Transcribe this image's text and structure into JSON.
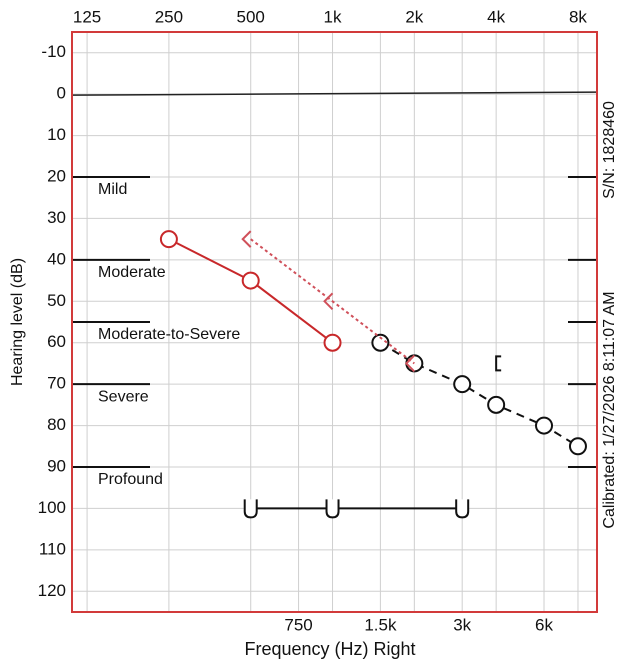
{
  "chart_data": {
    "type": "audiogram",
    "x_label": "Frequency (Hz) Right",
    "y_label": "Hearing level (dB)",
    "serial": "S/N: 1828460",
    "calibrated": "Calibrated: 1/27/2026 8:11:07 AM",
    "xlog": true,
    "xlim": [
      110,
      9400
    ],
    "ylim": [
      125,
      -15
    ],
    "top_xticks": [
      125,
      250,
      500,
      {
        "value": 1000,
        "label": "1k"
      },
      {
        "value": 2000,
        "label": "2k"
      },
      {
        "value": 4000,
        "label": "4k"
      },
      {
        "value": 8000,
        "label": "8k"
      }
    ],
    "bottom_xticks": [
      750,
      {
        "value": 1500,
        "label": "1.5k"
      },
      {
        "value": 3000,
        "label": "3k"
      },
      {
        "value": 6000,
        "label": "6k"
      }
    ],
    "yticks": [
      -10,
      0,
      10,
      20,
      30,
      40,
      50,
      60,
      70,
      80,
      90,
      100,
      110,
      120
    ],
    "grid": true,
    "frame_color": "#d23a3a",
    "reference_line": 0,
    "degrees": [
      {
        "label": "Mild",
        "from": 20
      },
      {
        "label": "Moderate",
        "from": 40
      },
      {
        "label": "Moderate-to-Severe",
        "from": 55
      },
      {
        "label": "Severe",
        "from": 70
      },
      {
        "label": "Profound",
        "from": 90
      }
    ],
    "series": [
      {
        "marker": "circle",
        "color": "#c8282a",
        "dash": "none",
        "x": [
          250,
          500,
          1000
        ],
        "values": [
          35,
          45,
          60
        ]
      },
      {
        "marker": "circle",
        "color": "#111111",
        "dash": "8 6",
        "x": [
          1500,
          2000,
          3000,
          4000,
          6000,
          8000
        ],
        "values": [
          60,
          65,
          70,
          75,
          80,
          85
        ]
      },
      {
        "marker": "lt",
        "color": "#d0505a",
        "dash": "3 3",
        "x": [
          500,
          1000,
          2000
        ],
        "values": [
          35,
          50,
          65
        ]
      },
      {
        "marker": "bracket",
        "color": "#111111",
        "dash": "none",
        "x": [
          4000
        ],
        "values": [
          65
        ]
      },
      {
        "marker": "u",
        "color": "#111111",
        "dash": "none",
        "x": [
          500,
          1000,
          3000
        ],
        "values": [
          100,
          100,
          100
        ]
      }
    ]
  }
}
